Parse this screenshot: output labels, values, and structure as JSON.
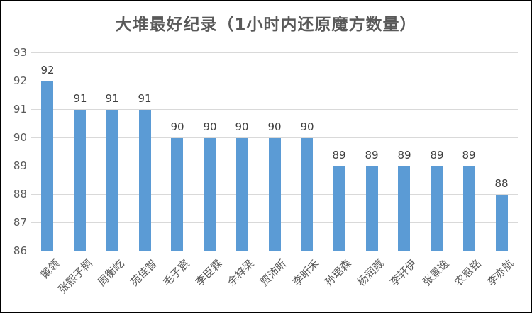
{
  "title": "大堆最好纪录（1小时内还原魔方数量）",
  "colors": {
    "bar": "#5b9bd5",
    "gridline": "#d9d9d9",
    "title_text": "#595959",
    "axis_text": "#595959",
    "value_label_text": "#404040",
    "frame_border": "#000000",
    "background": "#ffffff"
  },
  "chart_data": {
    "type": "bar",
    "title": "大堆最好纪录（1小时内还原魔方数量）",
    "categories": [
      "戴领",
      "张熙子桐",
      "周衡屹",
      "苑佳智",
      "毛子宸",
      "李臣霖",
      "余梓梁",
      "贾沛昕",
      "李昕禾",
      "孙珺森",
      "杨润葳",
      "李轩伊",
      "张景逸",
      "农恩铭",
      "李亦航"
    ],
    "values": [
      92,
      91,
      91,
      91,
      90,
      90,
      90,
      90,
      90,
      89,
      89,
      89,
      89,
      89,
      88
    ],
    "data_labels": [
      92,
      91,
      91,
      91,
      90,
      90,
      90,
      90,
      90,
      89,
      89,
      89,
      89,
      89,
      88
    ],
    "xlabel": "",
    "ylabel": "",
    "ylim": [
      86,
      93
    ],
    "yticks": [
      86,
      87,
      88,
      89,
      90,
      91,
      92,
      93
    ],
    "grid": true,
    "legend_position": "none",
    "x_tick_rotation_deg": 45
  }
}
